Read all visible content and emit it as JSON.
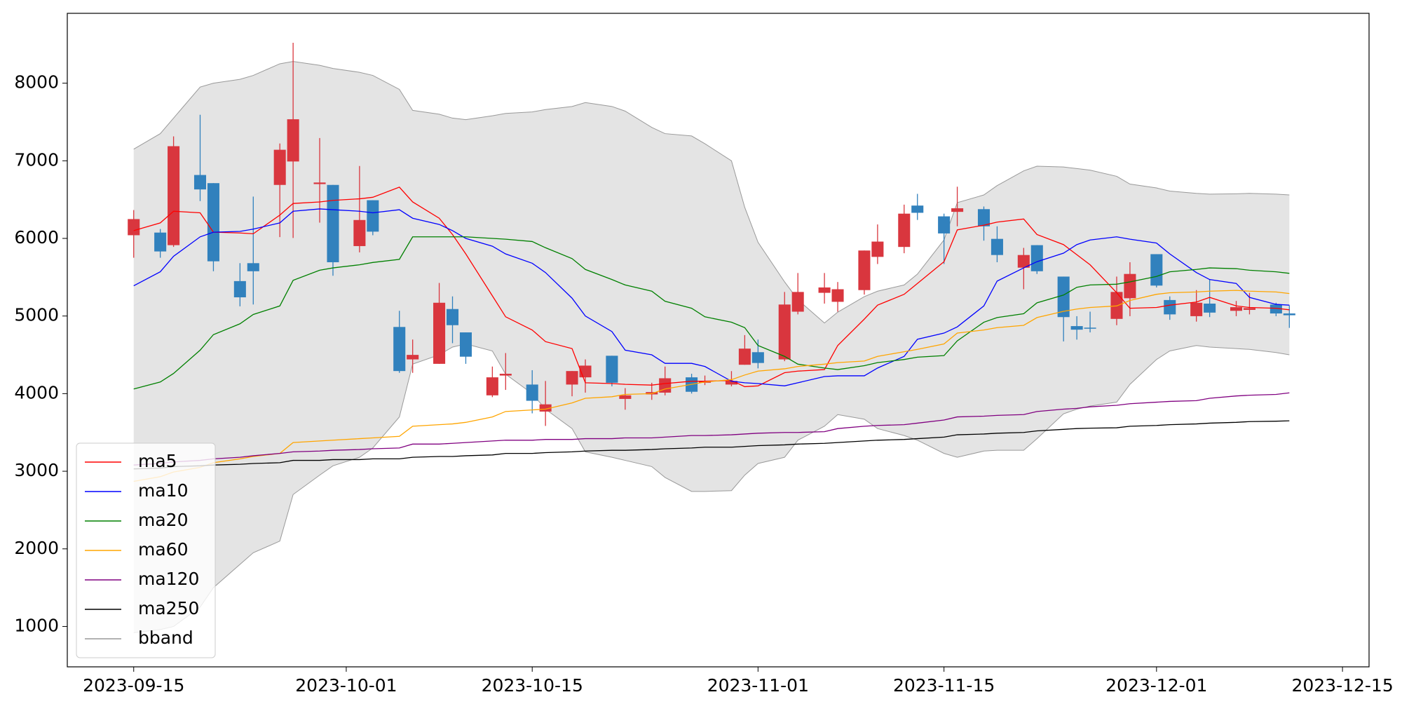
{
  "chart_data": {
    "type": "candlestick",
    "x": [
      "2023-09-15",
      "2023-09-17",
      "2023-09-18",
      "2023-09-20",
      "2023-09-21",
      "2023-09-23",
      "2023-09-24",
      "2023-09-26",
      "2023-09-27",
      "2023-09-29",
      "2023-09-30",
      "2023-10-02",
      "2023-10-03",
      "2023-10-05",
      "2023-10-06",
      "2023-10-08",
      "2023-10-09",
      "2023-10-10",
      "2023-10-12",
      "2023-10-13",
      "2023-10-15",
      "2023-10-16",
      "2023-10-18",
      "2023-10-19",
      "2023-10-21",
      "2023-10-22",
      "2023-10-24",
      "2023-10-25",
      "2023-10-27",
      "2023-10-28",
      "2023-10-30",
      "2023-10-31",
      "2023-11-01",
      "2023-11-03",
      "2023-11-04",
      "2023-11-06",
      "2023-11-07",
      "2023-11-09",
      "2023-11-10",
      "2023-11-12",
      "2023-11-13",
      "2023-11-15",
      "2023-11-16",
      "2023-11-18",
      "2023-11-19",
      "2023-11-21",
      "2023-11-22",
      "2023-11-24",
      "2023-11-25",
      "2023-11-26",
      "2023-11-28",
      "2023-11-29",
      "2023-12-01",
      "2023-12-02",
      "2023-12-04",
      "2023-12-05",
      "2023-12-07",
      "2023-12-08",
      "2023-12-10",
      "2023-12-11"
    ],
    "open": [
      6041,
      6075,
      5913,
      6817,
      6712,
      5450,
      5681,
      6689,
      6991,
      6700,
      6689,
      5901,
      6492,
      4859,
      4441,
      4384,
      5090,
      4789,
      3978,
      4233,
      4117,
      3769,
      4117,
      4210,
      4488,
      3932,
      3990,
      4013,
      4210,
      4140,
      4117,
      4372,
      4534,
      4441,
      5056,
      5299,
      5183,
      5334,
      5762,
      5890,
      6423,
      6284,
      6342,
      6377,
      5994,
      5623,
      5913,
      5508,
      4870,
      4850,
      4963,
      5229,
      5797,
      5206,
      4998,
      5160,
      5067,
      5079,
      5148,
      5033
    ],
    "high": [
      6365,
      6121,
      7315,
      7593,
      6712,
      5681,
      6539,
      7223,
      8520,
      7293,
      6689,
      6933,
      6492,
      5067,
      4697,
      5426,
      5253,
      4789,
      4349,
      4523,
      4302,
      4163,
      4291,
      4441,
      4488,
      4071,
      4140,
      4349,
      4256,
      4233,
      4290,
      4754,
      4697,
      5310,
      5554,
      5554,
      5438,
      5844,
      6180,
      6435,
      6574,
      6319,
      6666,
      6411,
      6156,
      5878,
      5913,
      5508,
      4998,
      5056,
      5508,
      5693,
      5797,
      5253,
      5334,
      5473,
      5194,
      5299,
      5171,
      5137
    ],
    "low": [
      5751,
      5751,
      5890,
      6481,
      5577,
      5125,
      5148,
      6017,
      6006,
      6203,
      5519,
      5820,
      6041,
      4268,
      4268,
      4384,
      4650,
      4384,
      3955,
      4048,
      3746,
      3584,
      3966,
      4013,
      4094,
      3793,
      3920,
      3978,
      4001,
      4110,
      4094,
      4372,
      4326,
      4418,
      5021,
      5160,
      5056,
      5276,
      5670,
      5809,
      6238,
      5670,
      6156,
      5971,
      5693,
      5345,
      5542,
      4673,
      4696,
      4789,
      4882,
      4998,
      5368,
      4951,
      4928,
      4986,
      4998,
      5021,
      4998,
      4847
    ],
    "close": [
      6249,
      5832,
      7188,
      6631,
      5705,
      5241,
      5577,
      7142,
      7535,
      6720,
      5693,
      6237,
      6087,
      4291,
      4499,
      5171,
      4882,
      4476,
      4210,
      4256,
      3908,
      3862,
      4291,
      4361,
      4140,
      3978,
      4020,
      4198,
      4024,
      4163,
      4163,
      4580,
      4395,
      5148,
      5310,
      5368,
      5345,
      5844,
      5959,
      6319,
      6330,
      6064,
      6388,
      6156,
      5786,
      5786,
      5577,
      4986,
      4824,
      4840,
      5310,
      5542,
      5392,
      5021,
      5171,
      5044,
      5114,
      5102,
      5033,
      5010
    ],
    "up_color": "#d9363e",
    "down_color": "#3181bd",
    "series": [
      {
        "name": "ma5",
        "color": "#ff0000",
        "values": [
          6100,
          6200,
          6350,
          6330,
          6080,
          6070,
          6060,
          6300,
          6450,
          6470,
          6490,
          6510,
          6530,
          6660,
          6470,
          6260,
          6050,
          5800,
          5260,
          4990,
          4820,
          4670,
          4580,
          4140,
          4130,
          4120,
          4110,
          4130,
          4160,
          4160,
          4170,
          4090,
          4100,
          4270,
          4290,
          4310,
          4620,
          4960,
          5140,
          5280,
          5420,
          5700,
          6110,
          6170,
          6210,
          6250,
          6050,
          5920,
          5790,
          5660,
          5300,
          5100,
          5110,
          5140,
          5180,
          5240,
          5130,
          5110,
          5100,
          5080
        ]
      },
      {
        "name": "ma10",
        "color": "#0000ff",
        "values": [
          5390,
          5570,
          5770,
          6020,
          6080,
          6090,
          6120,
          6200,
          6350,
          6380,
          6370,
          6350,
          6330,
          6370,
          6260,
          6180,
          6100,
          6000,
          5900,
          5800,
          5680,
          5560,
          5230,
          5000,
          4800,
          4560,
          4500,
          4390,
          4390,
          4350,
          4160,
          4140,
          4130,
          4100,
          4140,
          4220,
          4230,
          4230,
          4330,
          4480,
          4700,
          4780,
          4860,
          5130,
          5450,
          5620,
          5700,
          5810,
          5920,
          5980,
          6020,
          5990,
          5940,
          5800,
          5560,
          5470,
          5420,
          5240,
          5150,
          5140
        ]
      },
      {
        "name": "ma20",
        "color": "#008000",
        "values": [
          4060,
          4150,
          4260,
          4560,
          4760,
          4900,
          5020,
          5130,
          5460,
          5590,
          5620,
          5660,
          5690,
          5730,
          6020,
          6020,
          6020,
          6020,
          6000,
          5990,
          5960,
          5880,
          5740,
          5600,
          5470,
          5400,
          5320,
          5190,
          5100,
          4990,
          4920,
          4850,
          4620,
          4480,
          4380,
          4330,
          4310,
          4360,
          4400,
          4440,
          4470,
          4490,
          4680,
          4920,
          4980,
          5030,
          5170,
          5270,
          5370,
          5400,
          5410,
          5440,
          5510,
          5570,
          5600,
          5620,
          5610,
          5590,
          5570,
          5550
        ]
      },
      {
        "name": "ma60",
        "color": "#ffa500",
        "values": [
          2870,
          2930,
          2990,
          3050,
          3110,
          3160,
          3190,
          3230,
          3370,
          3390,
          3400,
          3420,
          3430,
          3450,
          3580,
          3600,
          3610,
          3630,
          3700,
          3770,
          3790,
          3800,
          3880,
          3940,
          3960,
          3990,
          4000,
          4060,
          4120,
          4150,
          4180,
          4240,
          4290,
          4320,
          4350,
          4380,
          4400,
          4420,
          4480,
          4540,
          4570,
          4640,
          4780,
          4820,
          4850,
          4880,
          4980,
          5060,
          5090,
          5110,
          5130,
          5200,
          5280,
          5300,
          5310,
          5320,
          5330,
          5320,
          5310,
          5290
        ]
      },
      {
        "name": "ma120",
        "color": "#800080",
        "values": [
          3080,
          3100,
          3120,
          3140,
          3160,
          3180,
          3200,
          3230,
          3250,
          3260,
          3270,
          3280,
          3290,
          3300,
          3350,
          3350,
          3360,
          3370,
          3390,
          3400,
          3400,
          3410,
          3410,
          3420,
          3420,
          3430,
          3430,
          3440,
          3460,
          3460,
          3470,
          3480,
          3490,
          3500,
          3500,
          3510,
          3550,
          3580,
          3590,
          3600,
          3620,
          3660,
          3700,
          3710,
          3720,
          3730,
          3770,
          3800,
          3810,
          3830,
          3850,
          3870,
          3890,
          3900,
          3910,
          3940,
          3970,
          3980,
          3990,
          4010
        ]
      },
      {
        "name": "ma250",
        "color": "#000000",
        "values": [
          3030,
          3040,
          3060,
          3070,
          3080,
          3090,
          3100,
          3110,
          3140,
          3140,
          3150,
          3150,
          3160,
          3160,
          3180,
          3190,
          3190,
          3200,
          3210,
          3230,
          3230,
          3240,
          3250,
          3260,
          3270,
          3270,
          3280,
          3290,
          3300,
          3310,
          3310,
          3320,
          3330,
          3340,
          3350,
          3360,
          3370,
          3390,
          3400,
          3410,
          3420,
          3440,
          3470,
          3480,
          3490,
          3500,
          3520,
          3540,
          3550,
          3555,
          3560,
          3580,
          3590,
          3600,
          3610,
          3620,
          3630,
          3640,
          3645,
          3650
        ]
      }
    ],
    "bband": {
      "name": "bband",
      "color": "#999999",
      "fill": "#e4e4e4",
      "upper": [
        7150,
        7350,
        7550,
        7950,
        8000,
        8050,
        8100,
        8250,
        8280,
        8230,
        8190,
        8140,
        8100,
        7920,
        7650,
        7600,
        7550,
        7530,
        7580,
        7610,
        7630,
        7660,
        7700,
        7750,
        7700,
        7640,
        7430,
        7350,
        7320,
        7220,
        7000,
        6400,
        5950,
        5440,
        5210,
        4910,
        5050,
        5250,
        5320,
        5400,
        5540,
        5980,
        6460,
        6560,
        6680,
        6870,
        6930,
        6920,
        6900,
        6880,
        6800,
        6700,
        6650,
        6610,
        6580,
        6570,
        6575,
        6580,
        6570,
        6560
      ],
      "lower": [
        920,
        960,
        1000,
        1250,
        1500,
        1800,
        1950,
        2100,
        2700,
        2950,
        3070,
        3180,
        3300,
        3700,
        4380,
        4500,
        4600,
        4640,
        4550,
        4250,
        4000,
        3800,
        3550,
        3250,
        3180,
        3140,
        3060,
        2920,
        2740,
        2740,
        2750,
        2950,
        3100,
        3180,
        3400,
        3580,
        3730,
        3670,
        3550,
        3460,
        3400,
        3230,
        3180,
        3260,
        3270,
        3270,
        3420,
        3740,
        3800,
        3840,
        3890,
        4120,
        4440,
        4550,
        4620,
        4600,
        4580,
        4570,
        4530,
        4500
      ]
    },
    "xlim": [
      "2023-09-10",
      "2023-12-17"
    ],
    "xticks": [
      "2023-09-15",
      "2023-10-01",
      "2023-10-15",
      "2023-11-01",
      "2023-11-15",
      "2023-12-01",
      "2023-12-15"
    ],
    "ylim": [
      480,
      8900
    ],
    "yticks": [
      1000,
      2000,
      3000,
      4000,
      5000,
      6000,
      7000,
      8000
    ],
    "legend": "lower left"
  }
}
